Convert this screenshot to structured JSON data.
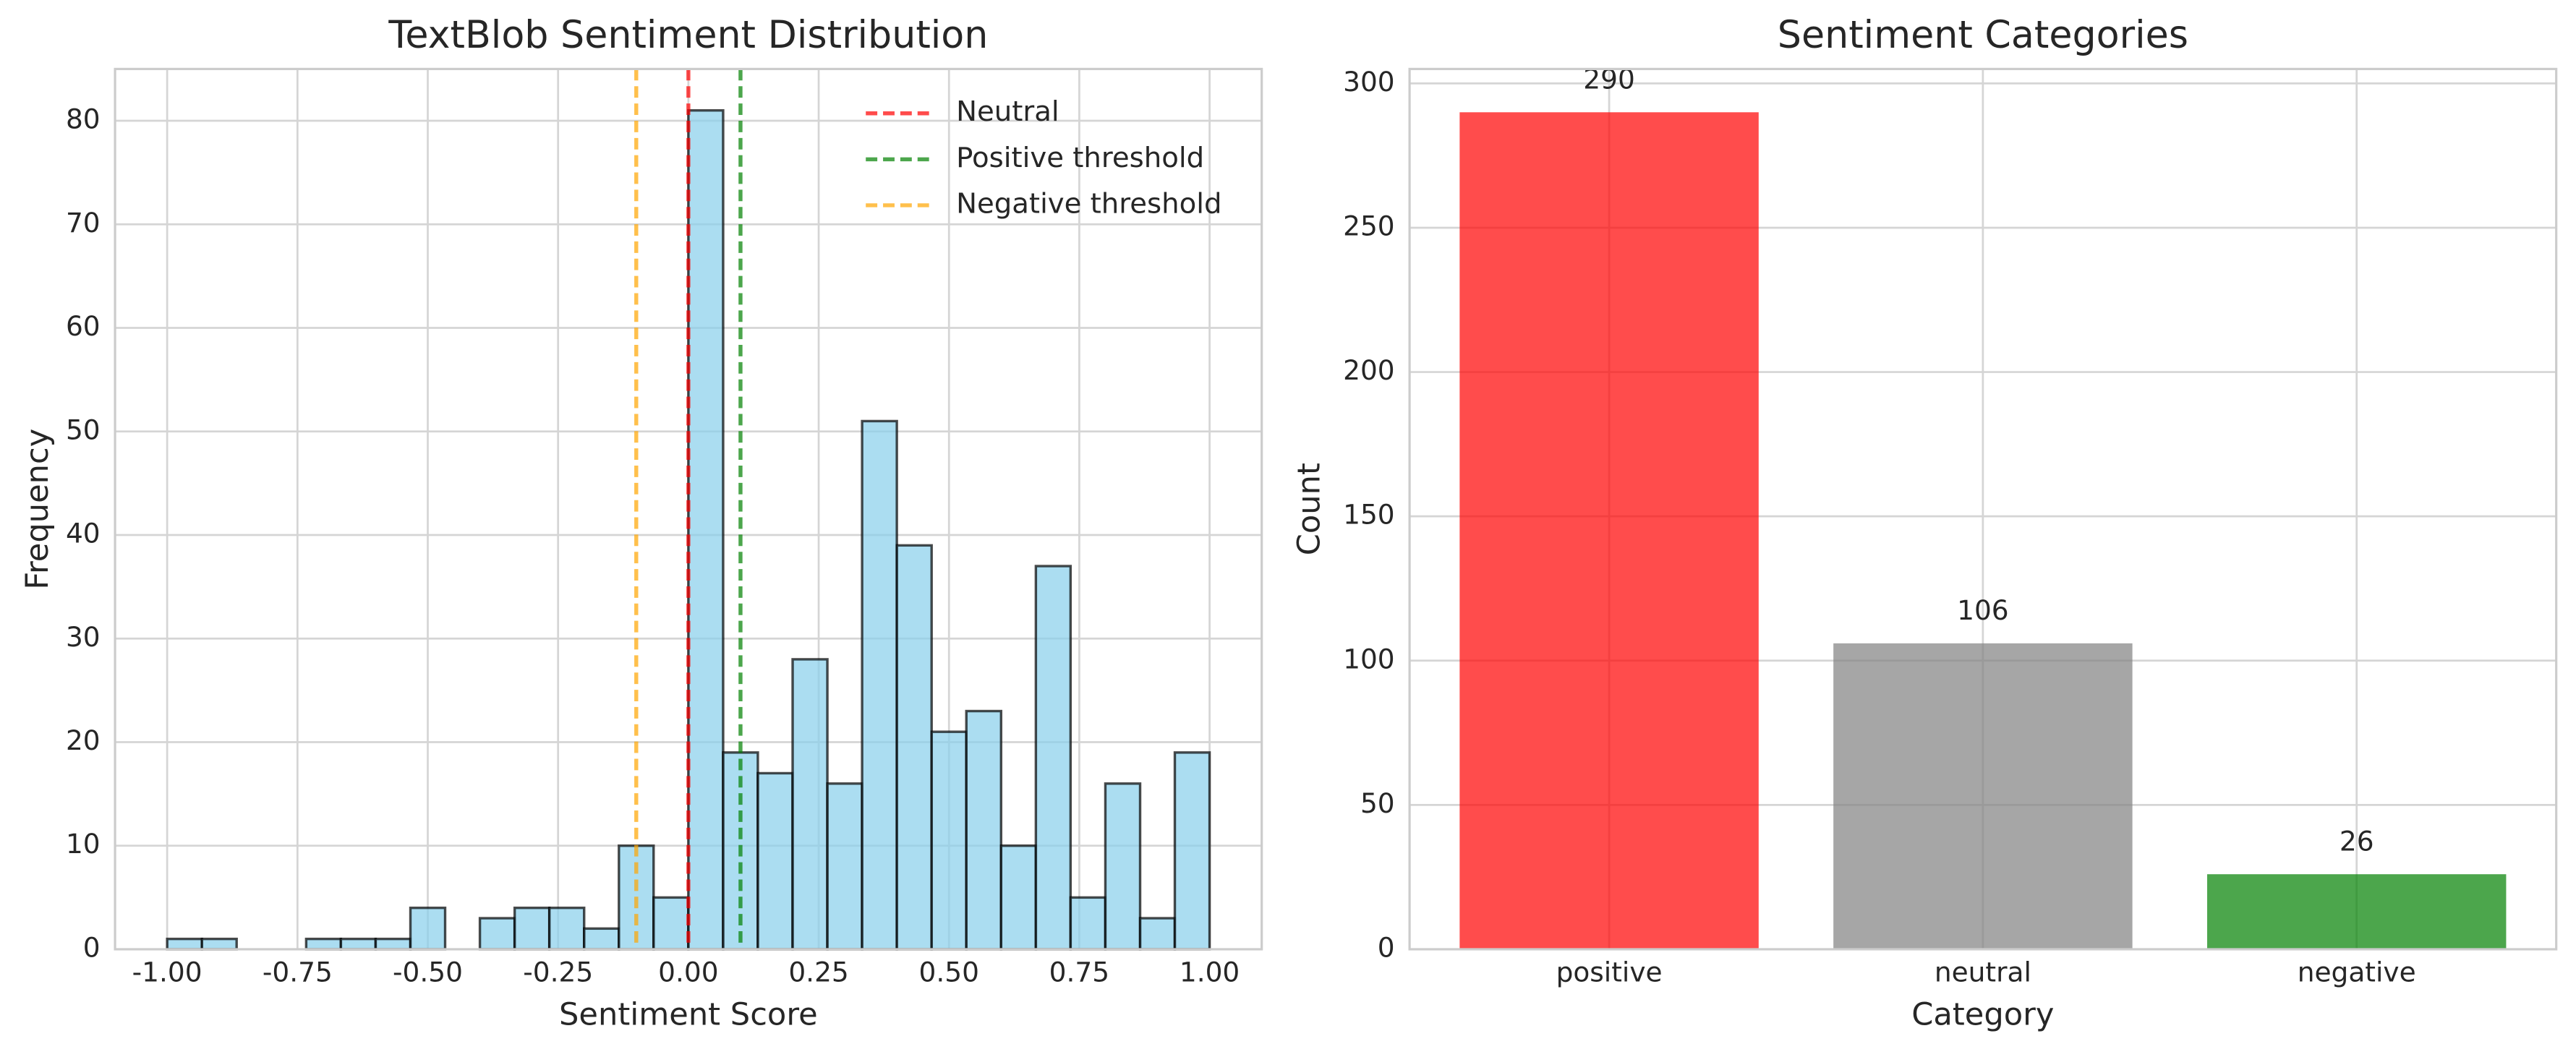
{
  "chart_data": [
    {
      "type": "histogram",
      "title": "TextBlob Sentiment Distribution",
      "xlabel": "Sentiment Score",
      "ylabel": "Frequency",
      "bins": [
        -1.0,
        -0.9333,
        -0.8667,
        -0.8,
        -0.7333,
        -0.6667,
        -0.6,
        -0.5333,
        -0.4667,
        -0.4,
        -0.3333,
        -0.2667,
        -0.2,
        -0.1333,
        -0.0667,
        0.0,
        0.0667,
        0.1333,
        0.2,
        0.2667,
        0.3333,
        0.4,
        0.4667,
        0.5333,
        0.6,
        0.6667,
        0.7333,
        0.8,
        0.8667,
        0.9333,
        1.0
      ],
      "values": [
        1,
        1,
        0,
        0,
        1,
        1,
        1,
        4,
        0,
        3,
        4,
        4,
        2,
        10,
        5,
        81,
        19,
        17,
        28,
        16,
        51,
        39,
        21,
        23,
        10,
        37,
        5,
        16,
        3,
        19
      ],
      "color": "#87ceeb",
      "edgecolor": "#000000",
      "xlim": [
        -1.1,
        1.1
      ],
      "ylim": [
        0,
        85
      ],
      "xticks": [
        {
          "value": -1.0,
          "label": "-1.00"
        },
        {
          "value": -0.75,
          "label": "-0.75"
        },
        {
          "value": -0.5,
          "label": "-0.50"
        },
        {
          "value": -0.25,
          "label": "-0.25"
        },
        {
          "value": 0,
          "label": "0.00"
        },
        {
          "value": 0.25,
          "label": "0.25"
        },
        {
          "value": 0.5,
          "label": "0.50"
        },
        {
          "value": 0.75,
          "label": "0.75"
        },
        {
          "value": 1.0,
          "label": "1.00"
        }
      ],
      "yticks": [
        0,
        10,
        20,
        30,
        40,
        50,
        60,
        70,
        80
      ],
      "grid": true,
      "vlines": [
        {
          "name": "Neutral",
          "value": 0,
          "color": "#ff0000"
        },
        {
          "name": "Positive threshold",
          "value": 0.1,
          "color": "#008000"
        },
        {
          "name": "Negative threshold",
          "value": -0.1,
          "color": "#ffa500"
        }
      ],
      "legend": "upper right"
    },
    {
      "type": "bar",
      "title": "Sentiment Categories",
      "xlabel": "Category",
      "ylabel": "Count",
      "categories": [
        "positive",
        "neutral",
        "negative"
      ],
      "values": [
        290,
        106,
        26
      ],
      "colors": [
        "#ff0000",
        "#808080",
        "#008000"
      ],
      "ylim": [
        0,
        305
      ],
      "yticks": [
        0,
        50,
        100,
        150,
        200,
        250,
        300
      ],
      "grid": true
    }
  ]
}
